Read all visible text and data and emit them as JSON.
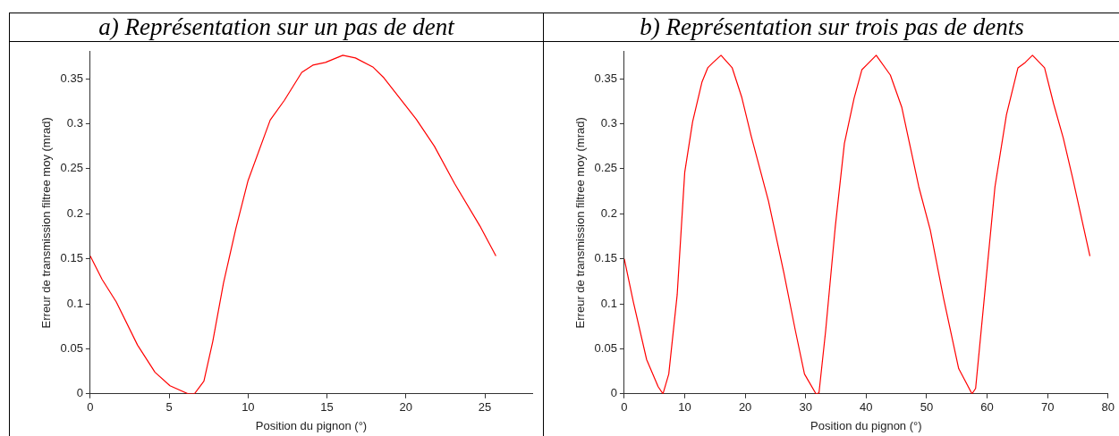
{
  "chart_data": [
    {
      "type": "line",
      "title": "a) Représentation sur un pas de dent",
      "xlabel": "Position du pignon (°)",
      "ylabel": "Erreur de transmission filtree moy (mrad)",
      "xlim": [
        0,
        28
      ],
      "xticks": [
        0,
        5,
        10,
        15,
        20,
        25
      ],
      "ylim": [
        0,
        0.38
      ],
      "yticks": [
        0,
        0.05,
        0.1,
        0.15,
        0.2,
        0.25,
        0.3,
        0.35
      ],
      "grid": false,
      "legend": false,
      "marker": "none",
      "series": [
        {
          "color": "#ff0000",
          "x": [
            0,
            0.75,
            1.65,
            3.0,
            4.1,
            5.05,
            6.2,
            6.6,
            7.2,
            7.76,
            8.44,
            9.23,
            10.0,
            11.4,
            12.3,
            13.4,
            14.1,
            14.9,
            16.0,
            16.8,
            17.9,
            18.6,
            20.65,
            21.8,
            23.1,
            24.7,
            25.7
          ],
          "values": [
            0.153,
            0.127,
            0.102,
            0.054,
            0.024,
            0.009,
            0,
            0,
            0.014,
            0.058,
            0.123,
            0.184,
            0.237,
            0.304,
            0.326,
            0.357,
            0.365,
            0.368,
            0.376,
            0.373,
            0.363,
            0.351,
            0.305,
            0.275,
            0.233,
            0.186,
            0.153
          ]
        }
      ]
    },
    {
      "type": "line",
      "title": "b) Représentation sur trois pas de dents",
      "xlabel": "Position du pignon (°)",
      "ylabel": "Erreur de transmission filtree moy (mrad)",
      "xlim": [
        0,
        80
      ],
      "xticks": [
        0,
        10,
        20,
        30,
        40,
        50,
        60,
        70,
        80
      ],
      "ylim": [
        0,
        0.38
      ],
      "yticks": [
        0,
        0.05,
        0.1,
        0.15,
        0.2,
        0.25,
        0.3,
        0.35
      ],
      "grid": false,
      "legend": false,
      "marker": "none",
      "series": [
        {
          "color": "#ff0000",
          "x": [
            0,
            1.5,
            3.7,
            5.6,
            6.4,
            7.36,
            8.75,
            10.0,
            11.3,
            12.84,
            13.8,
            14.7,
            16.0,
            17.85,
            19.4,
            21.0,
            23.85,
            26.4,
            28.3,
            29.8,
            31.7,
            32.2,
            33.3,
            34.9,
            36.4,
            38.0,
            39.3,
            40.2,
            41.66,
            44.0,
            45.9,
            48.7,
            50.6,
            52.8,
            55.3,
            57.5,
            58.1,
            59.7,
            61.3,
            63.2,
            65.1,
            66.3,
            67.5,
            69.5,
            71.0,
            72.6,
            74.2,
            77.0
          ],
          "values": [
            0.15,
            0.102,
            0.038,
            0.008,
            0,
            0.022,
            0.11,
            0.246,
            0.302,
            0.346,
            0.362,
            0.368,
            0.376,
            0.362,
            0.33,
            0.286,
            0.214,
            0.134,
            0.07,
            0.022,
            0,
            0.001,
            0.07,
            0.186,
            0.278,
            0.328,
            0.36,
            0.366,
            0.376,
            0.354,
            0.318,
            0.23,
            0.182,
            0.106,
            0.028,
            0,
            0.006,
            0.118,
            0.23,
            0.31,
            0.362,
            0.368,
            0.376,
            0.362,
            0.322,
            0.284,
            0.238,
            0.153
          ]
        }
      ]
    }
  ]
}
